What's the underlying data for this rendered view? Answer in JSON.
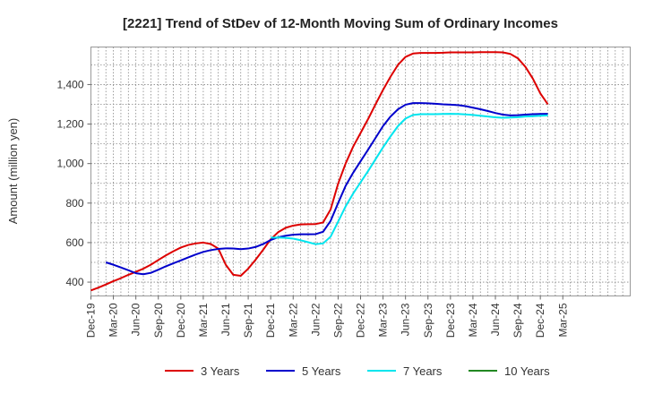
{
  "chart_data": {
    "type": "line",
    "title": "[2221]  Trend of StDev of 12-Month Moving Sum of Ordinary Incomes",
    "xlabel": "",
    "ylabel": "Amount (million yen)",
    "ylim": [
      330,
      1590
    ],
    "yticks": [
      400,
      600,
      800,
      1000,
      1200,
      1400
    ],
    "ytick_labels": [
      "400",
      "600",
      "800",
      "1,000",
      "1,200",
      "1,400"
    ],
    "x_range": [
      0,
      72
    ],
    "xtick_labels": [
      "Dec-19",
      "Mar-20",
      "Jun-20",
      "Sep-20",
      "Dec-20",
      "Mar-21",
      "Jun-21",
      "Sep-21",
      "Dec-21",
      "Mar-22",
      "Jun-22",
      "Sep-22",
      "Dec-22",
      "Mar-23",
      "Jun-23",
      "Sep-23",
      "Dec-23",
      "Mar-24",
      "Jun-24",
      "Sep-24",
      "Dec-24",
      "Mar-25"
    ],
    "grid": true,
    "legend_position": "bottom",
    "series": [
      {
        "name": "3 Years",
        "color": "#dd0000",
        "points": [
          [
            0,
            358
          ],
          [
            1,
            372
          ],
          [
            2,
            388
          ],
          [
            3,
            405
          ],
          [
            4,
            420
          ],
          [
            5,
            437
          ],
          [
            6,
            452
          ],
          [
            7,
            468
          ],
          [
            8,
            488
          ],
          [
            9,
            512
          ],
          [
            10,
            535
          ],
          [
            11,
            556
          ],
          [
            12,
            575
          ],
          [
            13,
            588
          ],
          [
            14,
            596
          ],
          [
            15,
            600
          ],
          [
            16,
            593
          ],
          [
            17,
            570
          ],
          [
            18,
            488
          ],
          [
            19,
            437
          ],
          [
            20,
            432
          ],
          [
            21,
            468
          ],
          [
            22,
            514
          ],
          [
            23,
            564
          ],
          [
            24,
            617
          ],
          [
            25,
            653
          ],
          [
            26,
            675
          ],
          [
            27,
            686
          ],
          [
            28,
            692
          ],
          [
            29,
            693
          ],
          [
            30,
            694
          ],
          [
            31,
            702
          ],
          [
            32,
            768
          ],
          [
            33,
            898
          ],
          [
            34,
            1000
          ],
          [
            35,
            1085
          ],
          [
            36,
            1155
          ],
          [
            37,
            1225
          ],
          [
            38,
            1300
          ],
          [
            39,
            1373
          ],
          [
            40,
            1440
          ],
          [
            41,
            1500
          ],
          [
            42,
            1540
          ],
          [
            43,
            1557
          ],
          [
            44,
            1560
          ],
          [
            45,
            1560
          ],
          [
            46,
            1560
          ],
          [
            47,
            1561
          ],
          [
            48,
            1563
          ],
          [
            49,
            1563
          ],
          [
            50,
            1563
          ],
          [
            51,
            1563
          ],
          [
            52,
            1564
          ],
          [
            53,
            1564
          ],
          [
            54,
            1564
          ],
          [
            55,
            1563
          ],
          [
            56,
            1555
          ],
          [
            57,
            1533
          ],
          [
            58,
            1490
          ],
          [
            59,
            1430
          ],
          [
            60,
            1355
          ],
          [
            61,
            1300
          ]
        ]
      },
      {
        "name": "5 Years",
        "color": "#0000cc",
        "points": [
          [
            2,
            500
          ],
          [
            3,
            488
          ],
          [
            4,
            474
          ],
          [
            5,
            460
          ],
          [
            6,
            445
          ],
          [
            7,
            440
          ],
          [
            8,
            447
          ],
          [
            9,
            463
          ],
          [
            10,
            480
          ],
          [
            11,
            495
          ],
          [
            12,
            510
          ],
          [
            13,
            525
          ],
          [
            14,
            540
          ],
          [
            15,
            553
          ],
          [
            16,
            562
          ],
          [
            17,
            568
          ],
          [
            18,
            571
          ],
          [
            19,
            570
          ],
          [
            20,
            567
          ],
          [
            21,
            570
          ],
          [
            22,
            578
          ],
          [
            23,
            593
          ],
          [
            24,
            613
          ],
          [
            25,
            627
          ],
          [
            26,
            635
          ],
          [
            27,
            640
          ],
          [
            28,
            642
          ],
          [
            29,
            642
          ],
          [
            30,
            643
          ],
          [
            31,
            655
          ],
          [
            32,
            710
          ],
          [
            33,
            800
          ],
          [
            34,
            887
          ],
          [
            35,
            953
          ],
          [
            36,
            1012
          ],
          [
            37,
            1070
          ],
          [
            38,
            1130
          ],
          [
            39,
            1190
          ],
          [
            40,
            1238
          ],
          [
            41,
            1275
          ],
          [
            42,
            1298
          ],
          [
            43,
            1306
          ],
          [
            44,
            1306
          ],
          [
            45,
            1305
          ],
          [
            46,
            1303
          ],
          [
            47,
            1300
          ],
          [
            48,
            1298
          ],
          [
            49,
            1296
          ],
          [
            50,
            1291
          ],
          [
            51,
            1283
          ],
          [
            52,
            1275
          ],
          [
            53,
            1266
          ],
          [
            54,
            1256
          ],
          [
            55,
            1248
          ],
          [
            56,
            1244
          ],
          [
            57,
            1245
          ],
          [
            58,
            1248
          ],
          [
            59,
            1250
          ],
          [
            60,
            1251
          ],
          [
            61,
            1252
          ]
        ]
      },
      {
        "name": "7 Years",
        "color": "#00e5ee",
        "points": [
          [
            24,
            625
          ],
          [
            25,
            626
          ],
          [
            26,
            624
          ],
          [
            27,
            620
          ],
          [
            28,
            612
          ],
          [
            29,
            602
          ],
          [
            30,
            592
          ],
          [
            31,
            596
          ],
          [
            32,
            630
          ],
          [
            33,
            706
          ],
          [
            34,
            783
          ],
          [
            35,
            848
          ],
          [
            36,
            905
          ],
          [
            37,
            962
          ],
          [
            38,
            1022
          ],
          [
            39,
            1082
          ],
          [
            40,
            1138
          ],
          [
            41,
            1190
          ],
          [
            42,
            1228
          ],
          [
            43,
            1246
          ],
          [
            44,
            1250
          ],
          [
            45,
            1250
          ],
          [
            46,
            1250
          ],
          [
            47,
            1251
          ],
          [
            48,
            1252
          ],
          [
            49,
            1251
          ],
          [
            50,
            1249
          ],
          [
            51,
            1246
          ],
          [
            52,
            1242
          ],
          [
            53,
            1238
          ],
          [
            54,
            1234
          ],
          [
            55,
            1232
          ],
          [
            56,
            1233
          ],
          [
            57,
            1235
          ],
          [
            58,
            1238
          ],
          [
            59,
            1240
          ],
          [
            60,
            1242
          ],
          [
            61,
            1244
          ]
        ]
      },
      {
        "name": "10 Years",
        "color": "#228822",
        "points": []
      }
    ]
  }
}
